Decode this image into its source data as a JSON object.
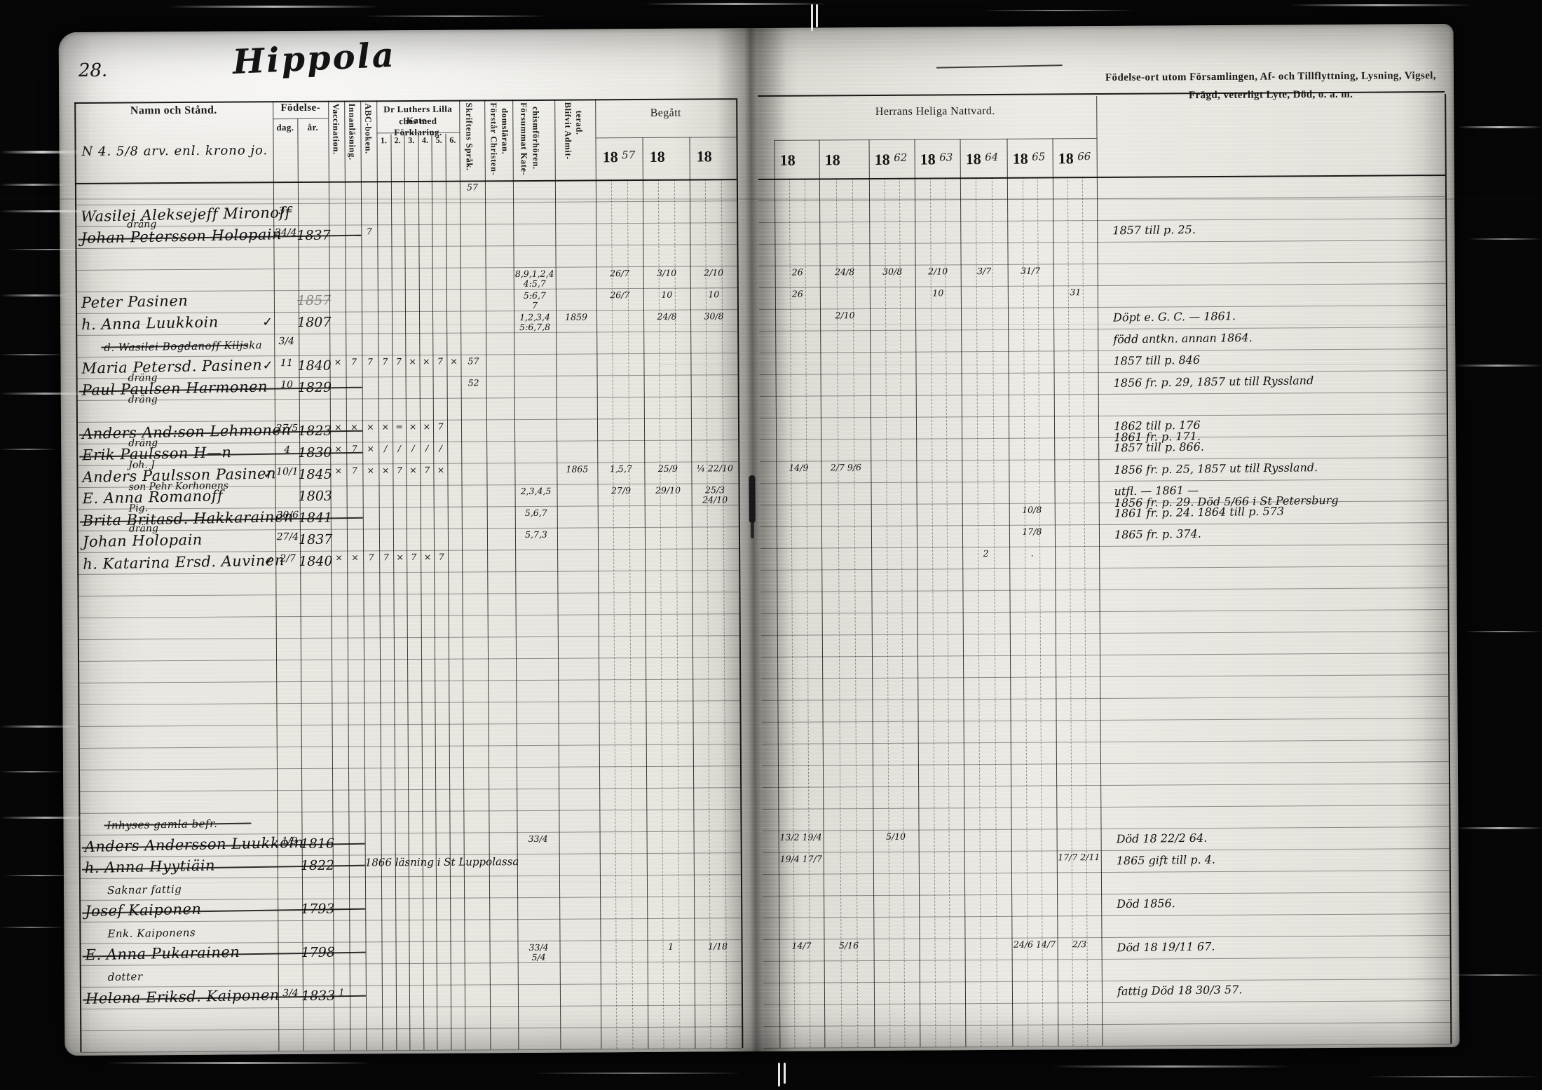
{
  "scan": {
    "page_number": "28.",
    "title": "Hippola"
  },
  "headers": {
    "namn": "Namn och Stånd.",
    "name_note": "N 4.  5/8 arv. enl. krono jo.",
    "fodelse": "Födelse-",
    "dag": "dag.",
    "ar": "år.",
    "vaccination": "Vaccination.",
    "innanlasning": "Innanläsning.",
    "abc": "ABC-boken.",
    "katekes1": "Dr Luthers Lilla Kate-",
    "katekes2": "ches med Förklaring.",
    "katekes_nums": [
      "1.",
      "2.",
      "3.",
      "4.",
      "5.",
      "6."
    ],
    "skriftens": "Skriftens Språk.",
    "forstar1": "Förstår Christen-",
    "forstar2": "domsläran.",
    "forsummat1": "Försummat Kate-",
    "forsummat2": "chismförhören.",
    "blifvit1": "Blifvit Admit-",
    "blifvit2": "terad.",
    "begatt": "Begått",
    "herrans": "Herrans Heliga Nattvard.",
    "right1": "Födelse-ort utom Församlingen, Af- och Tillflyttning, Lysning, Vigsel,",
    "right2": "Frägd, veterligt Lyte, Död, o. a. m."
  },
  "years_left": [
    {
      "printed": "18",
      "hand": "57"
    },
    {
      "printed": "18",
      "hand": ""
    },
    {
      "printed": "18",
      "hand": ""
    }
  ],
  "years_right": [
    {
      "printed": "18",
      "hand": ""
    },
    {
      "printed": "18",
      "hand": ""
    },
    {
      "printed": "18",
      "hand": "62"
    },
    {
      "printed": "18",
      "hand": "63"
    },
    {
      "printed": "18",
      "hand": "64"
    },
    {
      "printed": "18",
      "hand": "65"
    },
    {
      "printed": "18",
      "hand": "66"
    }
  ],
  "rows": [
    {
      "i": 0,
      "cells": {
        "skrift": "57"
      }
    },
    {
      "i": 1,
      "name": "Wasilei Aleksejeff Mironoff",
      "dag": "3="
    },
    {
      "i": 2,
      "name": "Johan Petersson Holopain",
      "struck": true,
      "sub_above": "dräng",
      "dag": "24/4",
      "ar": "1837",
      "cells": {
        "abc": "7"
      },
      "note": "1857 till p. 25."
    },
    {
      "i": 4,
      "cells": {
        "forsummat": "8,9,1,2,4\n4:5,7",
        "L1": "26/7",
        "L2": "3/10",
        "L3": "2/10",
        "R1": "26",
        "R2": "24/8",
        "R3": "30/8",
        "R4": "2/10",
        "R5": "3/7",
        "R6": "31/7"
      }
    },
    {
      "i": 5,
      "name": "Peter Pasinen",
      "ar": "1857",
      "ar_faint": true,
      "cells": {
        "forsummat": "5:6,7\n7",
        "L1": "26/7",
        "L2": "10",
        "L3": "10",
        "R1": "26",
        "R4": "10",
        "R7": "31"
      }
    },
    {
      "i": 6,
      "name": "h. Anna Luukkoin",
      "check": "✓",
      "ar": "1807",
      "cells": {
        "forsummat": "1,2,3,4\n5:6,7,8",
        "blifvit": "1859",
        "L2": "24/8",
        "L3": "30/8",
        "R2": "2/10"
      },
      "note": "Döpt e. G. C. — 1861."
    },
    {
      "i": 7,
      "name": "d. Wasilei Bogdanoff Kiljska",
      "small": true,
      "struck": true,
      "dag": "3/4",
      "note": "född antkn. annan 1864."
    },
    {
      "i": 8,
      "name": "Maria Petersd. Pasinen",
      "check": "✓",
      "dag": "11",
      "ar": "1840",
      "sub": "dräng",
      "cells": {
        "vacc": "×",
        "innanl": "7",
        "abc": "7",
        "k1": "7",
        "k2": "7",
        "k3": "×",
        "k4": "×",
        "k5": "7",
        "k6": "×",
        "skrift": "57"
      },
      "note": "1857 till p. 846"
    },
    {
      "i": 9,
      "name": "Paul Paulsen Harmonen",
      "struck": true,
      "dag": "10",
      "ar": "1829",
      "sub": "dräng",
      "cells": {
        "skrift": "52"
      },
      "note": "1856 fr. p. 29, 1857 ut till Ryssland"
    },
    {
      "i": 11,
      "name": "Anders And:son Lehmonen",
      "struck": true,
      "dag": "27/5",
      "ar": "1823",
      "sub": "dräng",
      "cells": {
        "vacc": "×",
        "innanl": "×",
        "abc": "×",
        "k1": "×",
        "k2": "=",
        "k3": "×",
        "k4": "×",
        "k5": "7"
      },
      "note": "1862 till p. 176",
      "note2": "1861 fr. p. 171."
    },
    {
      "i": 12,
      "name": "Erik Paulsson H—n",
      "struck": true,
      "dag": "4",
      "ar": "1830",
      "sub": "Joh. J",
      "cells": {
        "vacc": "×",
        "innanl": "7",
        "abc": "×",
        "k1": "/",
        "k2": "/",
        "k3": "/",
        "k4": "/",
        "k5": "/"
      },
      "note": "1857 till p. 866."
    },
    {
      "i": 13,
      "name": "Anders Paulsson Pasinen",
      "check": "✓",
      "dag": "10/1",
      "ar": "1845",
      "sub": "son Pehr Korhonens",
      "cells": {
        "vacc": "×",
        "innanl": "7",
        "abc": "×",
        "k1": "×",
        "k2": "7",
        "k3": "×",
        "k4": "7",
        "k5": "×",
        "blifvit": "1865",
        "L1": "1,5,7",
        "L2": "25/9",
        "L3": "¼ 22/10",
        "R1": "14/9",
        "R2": "2/7 9/6"
      },
      "note": "1856 fr. p. 25, 1857 ut till Ryssland."
    },
    {
      "i": 14,
      "name": "E. Anna Romanoff",
      "ar": "1803",
      "sub": "Pig.",
      "cells": {
        "forsummat": "2,3,4,5",
        "L1": "27/9",
        "L2": "29/10",
        "L3": "25/3 24/10"
      },
      "note": "utfl. — 1861 —",
      "note2": "1856 fr. p. 29.  Död 5/66 i St Petersburg"
    },
    {
      "i": 15,
      "name": "Brita Britasd. Hakkarainen",
      "struck": true,
      "dag": "30/6",
      "ar": "1841",
      "cells": {
        "forsummat": "5,6,7",
        "R6": "10/8"
      },
      "note": "1861 fr. p. 24.  1864 till p. 573"
    },
    {
      "i": 16,
      "name": "Johan Holopain",
      "sub_above": "dräng",
      "dag": "27/4",
      "ar": "1837",
      "cells": {
        "forsummat": "5,7,3",
        "R6": "17/8"
      },
      "note": "1865 fr. p. 374."
    },
    {
      "i": 17,
      "name": "h. Katarina Ersd. Auvinen",
      "check": "✓",
      "dag": "2/7",
      "ar": "1840",
      "cells": {
        "vacc": "×",
        "innanl": "×",
        "abc": "7",
        "k1": "7",
        "k2": "×",
        "k3": "7",
        "k4": "×",
        "k5": "7",
        "R5": "2",
        "R6": "."
      }
    },
    {
      "i": 29,
      "name": "Inhyses gamla befr.",
      "small": true,
      "struck": true
    },
    {
      "i": 30,
      "name": "Anders Andersson Luukkoin",
      "struck": true,
      "dag": "1/9",
      "ar": "1816",
      "cells": {
        "forsummat": "33/4",
        "R1": "13/2 19/4",
        "R3": "5/10"
      },
      "note": "Död 18 22/2 64."
    },
    {
      "i": 31,
      "name": "h. Anna Hyytiäin",
      "struck": true,
      "ar": "1822",
      "cells": {
        "span": "1866 läsning i St Luppolassa",
        "R1": "19/4 17/7",
        "R7": "17/7 2/11"
      },
      "note": "1865 gift till p. 4."
    },
    {
      "i": 32,
      "name": "Saknar fattig",
      "small": true
    },
    {
      "i": 33,
      "name": "Josef Kaiponen",
      "struck": true,
      "ar": "1793",
      "note": "Död 1856."
    },
    {
      "i": 34,
      "name": "Enk. Kaiponens",
      "small": true
    },
    {
      "i": 35,
      "name": "E. Anna Pukarainen",
      "struck": true,
      "ar": "1798",
      "cells": {
        "forsummat": "33/4\n5/4",
        "L2": "1",
        "L3": "1/18",
        "R1": "14/7",
        "R2": "5/16",
        "R6": "24/6 14/7",
        "R7": "2/3"
      },
      "note": "Död 18 19/11 67."
    },
    {
      "i": 36,
      "name": "dotter",
      "small": true
    },
    {
      "i": 37,
      "name": "Helena Eriksd. Kaiponen",
      "struck": true,
      "dag": "3/4",
      "ar": "1833",
      "cells": {
        "vacc": "1"
      },
      "note": "fattig  Död 18 30/3 57."
    }
  ]
}
